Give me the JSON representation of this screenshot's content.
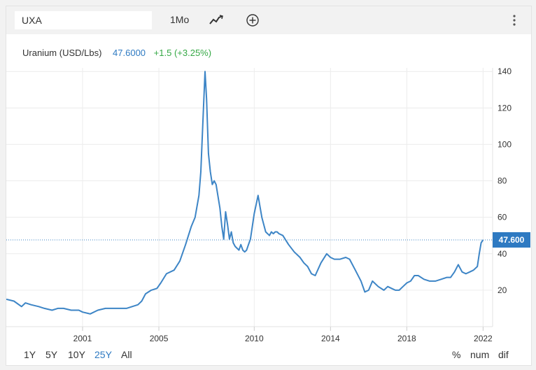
{
  "toolbar": {
    "symbol": "UXA",
    "period": "1Mo",
    "chart_type_icon": "line-chart-icon",
    "add_icon": "plus-circle-icon",
    "more_icon": "vertical-dots-icon"
  },
  "legend": {
    "name": "Uranium (USD/Lbs)",
    "value": "47.6000",
    "change": "+1.5 (+3.25%)"
  },
  "last_price_label": "47.600",
  "ranges": [
    "1Y",
    "5Y",
    "10Y",
    "25Y",
    "All"
  ],
  "active_range": "25Y",
  "modes": [
    "%",
    "num",
    "dif"
  ],
  "colors": {
    "line": "#3d85c6",
    "value": "#2e7ac2",
    "change": "#35a845",
    "label_bg": "#2e7ac2"
  },
  "chart_data": {
    "type": "line",
    "title": "Uranium (USD/Lbs)",
    "xlabel": "",
    "ylabel": "",
    "x_ticks": [
      2001,
      2005,
      2010,
      2014,
      2018,
      2022
    ],
    "y_ticks": [
      20,
      40,
      60,
      80,
      100,
      120,
      140
    ],
    "xlim": [
      1997,
      2022.5
    ],
    "ylim": [
      0,
      142
    ],
    "grid": true,
    "last_value": 47.6,
    "series": [
      {
        "x": [
          1997.0,
          1997.4,
          1997.8,
          1998.0,
          1998.3,
          1998.7,
          1999.0,
          1999.4,
          1999.7,
          2000.0,
          2000.4,
          2000.8,
          2001.0,
          2001.4,
          2001.8,
          2002.2,
          2002.6,
          2003.0,
          2003.3,
          2003.6,
          2003.9,
          2004.1,
          2004.3,
          2004.6,
          2004.9,
          2005.1,
          2005.4,
          2005.8,
          2006.1,
          2006.4,
          2006.7,
          2006.9,
          2007.1,
          2007.2,
          2007.3,
          2007.42,
          2007.5,
          2007.6,
          2007.7,
          2007.8,
          2007.9,
          2008.0,
          2008.2,
          2008.3,
          2008.4,
          2008.5,
          2008.6,
          2008.7,
          2008.8,
          2008.9,
          2009.0,
          2009.2,
          2009.3,
          2009.4,
          2009.5,
          2009.6,
          2009.7,
          2009.8,
          2009.9,
          2010.0,
          2010.2,
          2010.4,
          2010.6,
          2010.8,
          2010.9,
          2011.0,
          2011.1,
          2011.2,
          2011.3,
          2011.5,
          2011.8,
          2012.1,
          2012.4,
          2012.6,
          2012.8,
          2013.0,
          2013.2,
          2013.5,
          2013.8,
          2014.0,
          2014.2,
          2014.5,
          2014.8,
          2015.0,
          2015.3,
          2015.6,
          2015.8,
          2016.0,
          2016.2,
          2016.5,
          2016.8,
          2017.0,
          2017.2,
          2017.4,
          2017.6,
          2017.8,
          2018.0,
          2018.2,
          2018.4,
          2018.6,
          2018.9,
          2019.2,
          2019.5,
          2019.8,
          2020.1,
          2020.3,
          2020.5,
          2020.7,
          2020.9,
          2021.1,
          2021.3,
          2021.5,
          2021.7,
          2021.8,
          2021.9,
          2022.0
        ],
        "y": [
          15,
          14,
          11,
          13,
          12,
          11,
          10,
          9,
          10,
          10,
          9,
          9,
          8,
          7,
          9,
          10,
          10,
          10,
          10,
          11,
          12,
          14,
          18,
          20,
          21,
          24,
          29,
          31,
          36,
          45,
          55,
          60,
          72,
          85,
          110,
          140,
          125,
          95,
          85,
          78,
          80,
          78,
          65,
          55,
          48,
          63,
          56,
          48,
          52,
          46,
          44,
          42,
          45,
          42,
          41,
          42,
          45,
          48,
          55,
          62,
          72,
          60,
          52,
          50,
          52,
          51,
          52,
          52,
          51,
          50,
          45,
          41,
          38,
          35,
          33,
          29,
          28,
          35,
          40,
          38,
          37,
          37,
          38,
          37,
          31,
          25,
          19,
          20,
          25,
          22,
          20,
          22,
          21,
          20,
          20,
          22,
          24,
          25,
          28,
          28,
          26,
          25,
          25,
          26,
          27,
          27,
          30,
          34,
          30,
          29,
          30,
          31,
          33,
          40,
          46,
          47.6
        ]
      }
    ]
  }
}
